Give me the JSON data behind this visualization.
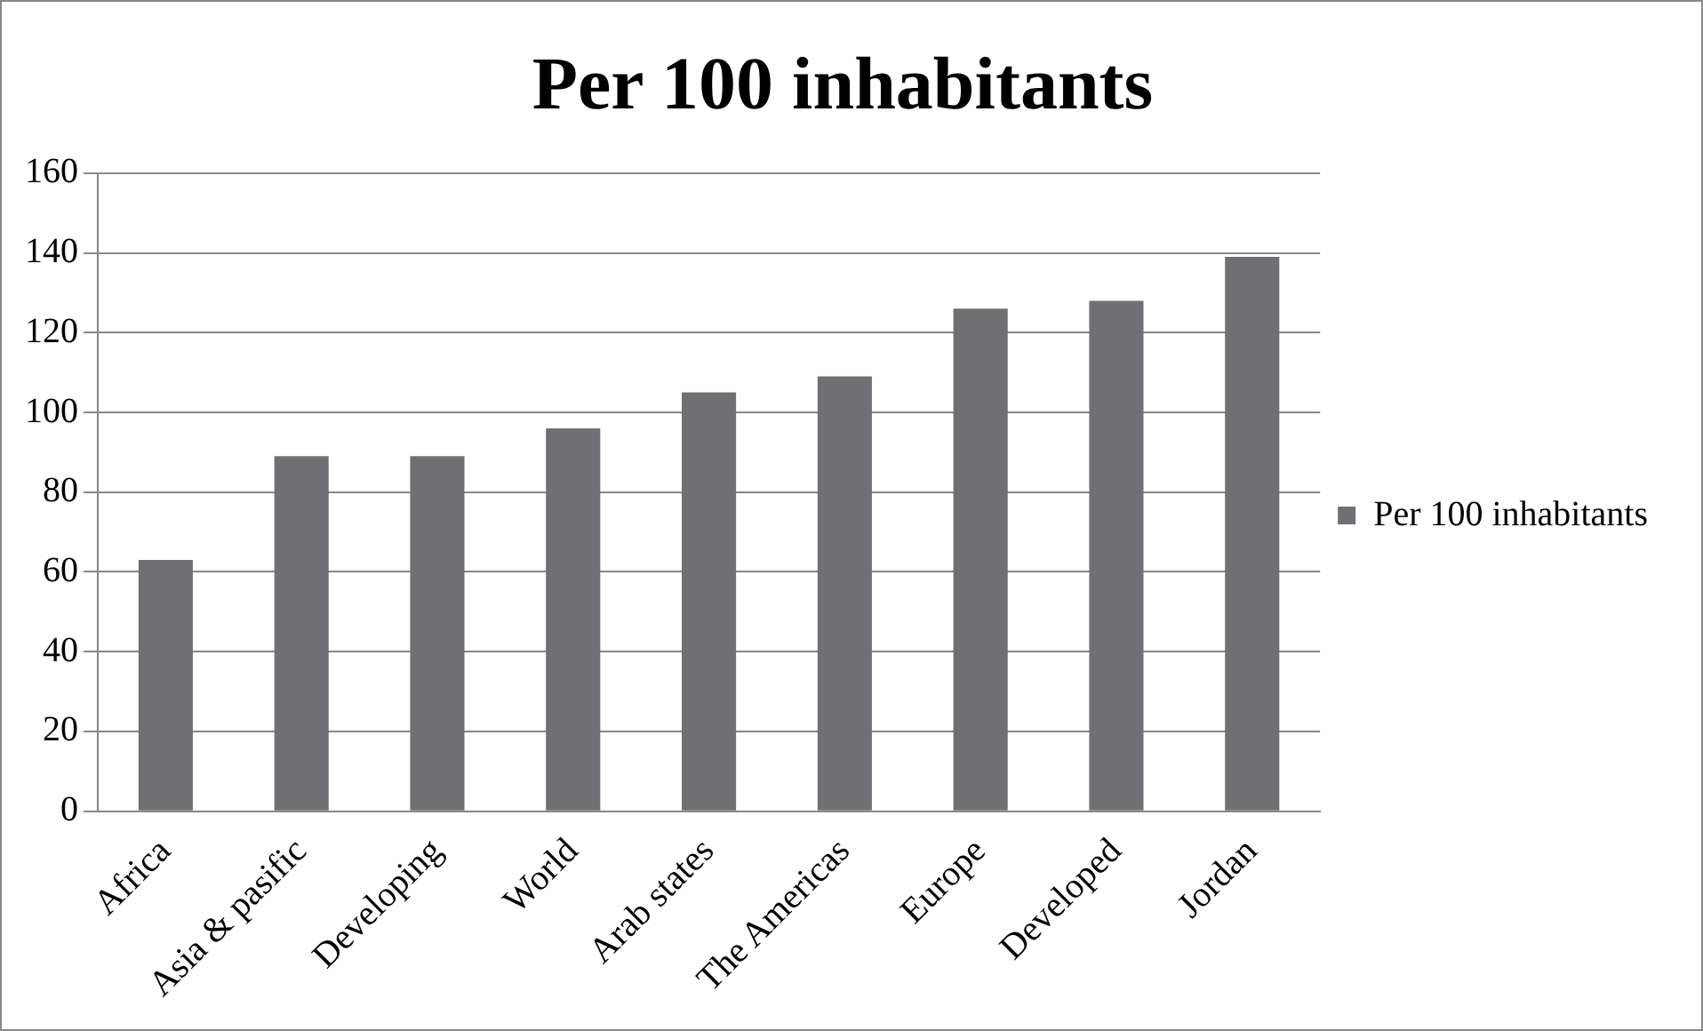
{
  "chart_data": {
    "type": "bar",
    "title": "Per 100 inhabitants",
    "categories": [
      "Africa",
      "Asia & pasific",
      "Developing",
      "World",
      "Arab states",
      "The Americas",
      "Europe",
      "Developed",
      "Jordan"
    ],
    "series": [
      {
        "name": "Per 100 inhabitants",
        "color": "#707074",
        "values": [
          63,
          89,
          89,
          96,
          105,
          109,
          126,
          128,
          139
        ]
      }
    ],
    "ylim": [
      0,
      160
    ],
    "yticks": [
      0,
      20,
      40,
      60,
      80,
      100,
      120,
      140,
      160
    ],
    "grid": "y",
    "legend": "right"
  }
}
